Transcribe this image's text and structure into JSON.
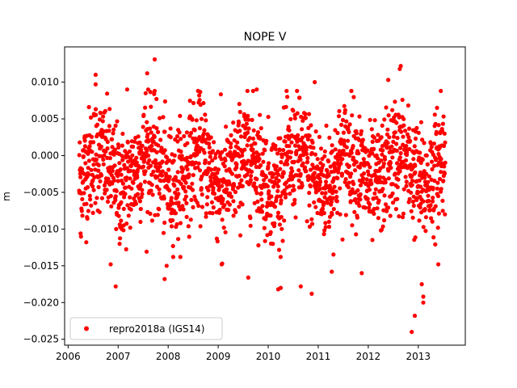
{
  "chart_data": {
    "type": "scatter",
    "title": "NOPE V",
    "xlabel": "",
    "ylabel": "m",
    "xlim": [
      2005.93,
      2013.94
    ],
    "ylim": [
      -0.0258,
      0.0148
    ],
    "x_ticks": [
      2006,
      2007,
      2008,
      2009,
      2010,
      2011,
      2012,
      2013
    ],
    "x_tick_labels": [
      "2006",
      "2007",
      "2008",
      "2009",
      "2010",
      "2011",
      "2012",
      "2013"
    ],
    "y_ticks": [
      0.01,
      0.005,
      0.0,
      -0.005,
      -0.01,
      -0.015,
      -0.02,
      -0.025
    ],
    "y_tick_labels": [
      "0.010",
      "0.005",
      "0.000",
      "−0.005",
      "−0.010",
      "−0.015",
      "−0.020",
      "−0.025"
    ],
    "grid": false,
    "legend_position": "lower-left",
    "series": [
      {
        "name": "repro2018a (IGS14)",
        "color": "#ff0000",
        "marker": "circle",
        "x_range": [
          2006.22,
          2013.54
        ],
        "baseline": -0.002,
        "noise_sd": 0.0038,
        "points": [
          {
            "x": 2006.25,
            "y": -0.0106
          },
          {
            "x": 2006.55,
            "y": 0.011
          },
          {
            "x": 2006.55,
            "y": 0.0097
          },
          {
            "x": 2006.85,
            "y": -0.0148
          },
          {
            "x": 2006.95,
            "y": -0.0178
          },
          {
            "x": 2007.03,
            "y": -0.012
          },
          {
            "x": 2007.18,
            "y": 0.009
          },
          {
            "x": 2007.55,
            "y": 0.0085
          },
          {
            "x": 2007.58,
            "y": 0.0112
          },
          {
            "x": 2007.6,
            "y": 0.009
          },
          {
            "x": 2007.73,
            "y": 0.0131
          },
          {
            "x": 2007.93,
            "y": -0.0168
          },
          {
            "x": 2007.97,
            "y": -0.015
          },
          {
            "x": 2008.2,
            "y": 0.0035
          },
          {
            "x": 2008.62,
            "y": 0.0082
          },
          {
            "x": 2009.07,
            "y": -0.0148
          },
          {
            "x": 2009.08,
            "y": -0.0147
          },
          {
            "x": 2009.6,
            "y": -0.0166
          },
          {
            "x": 2009.77,
            "y": 0.009
          },
          {
            "x": 2010.2,
            "y": -0.0182
          },
          {
            "x": 2010.25,
            "y": -0.018
          },
          {
            "x": 2010.38,
            "y": 0.008
          },
          {
            "x": 2010.65,
            "y": -0.0178
          },
          {
            "x": 2010.87,
            "y": -0.0188
          },
          {
            "x": 2010.93,
            "y": 0.01
          },
          {
            "x": 2011.27,
            "y": -0.0158
          },
          {
            "x": 2011.87,
            "y": -0.016
          },
          {
            "x": 2012.4,
            "y": 0.0103
          },
          {
            "x": 2012.63,
            "y": 0.0118
          },
          {
            "x": 2012.65,
            "y": 0.0122
          },
          {
            "x": 2012.87,
            "y": -0.024
          },
          {
            "x": 2012.93,
            "y": -0.0218
          },
          {
            "x": 2013.07,
            "y": -0.0175
          },
          {
            "x": 2013.1,
            "y": -0.0192
          },
          {
            "x": 2013.1,
            "y": -0.02
          },
          {
            "x": 2013.4,
            "y": -0.0148
          },
          {
            "x": 2013.45,
            "y": 0.0088
          }
        ]
      }
    ]
  }
}
